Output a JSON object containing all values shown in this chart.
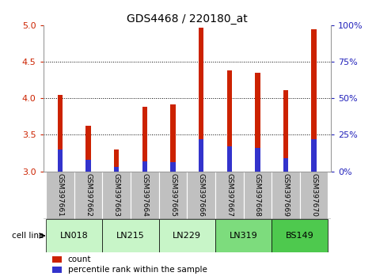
{
  "title": "GDS4468 / 220180_at",
  "samples": [
    "GSM397661",
    "GSM397662",
    "GSM397663",
    "GSM397664",
    "GSM397665",
    "GSM397666",
    "GSM397667",
    "GSM397668",
    "GSM397669",
    "GSM397670"
  ],
  "count_values": [
    4.05,
    3.62,
    3.3,
    3.88,
    3.92,
    4.97,
    4.38,
    4.35,
    4.11,
    4.94
  ],
  "percentile_values": [
    15,
    8,
    3,
    7,
    6,
    22,
    17,
    16,
    9,
    22
  ],
  "ylim": [
    3.0,
    5.0
  ],
  "yticks": [
    3.0,
    3.5,
    4.0,
    4.5,
    5.0
  ],
  "right_yticks": [
    0,
    25,
    50,
    75,
    100
  ],
  "right_ylim": [
    0,
    100
  ],
  "cell_line_data": [
    {
      "name": "LN018",
      "indices": [
        0,
        1
      ],
      "color": "#c8f5c8"
    },
    {
      "name": "LN215",
      "indices": [
        2,
        3
      ],
      "color": "#c8f5c8"
    },
    {
      "name": "LN229",
      "indices": [
        4,
        5
      ],
      "color": "#c8f5c8"
    },
    {
      "name": "LN319",
      "indices": [
        6,
        7
      ],
      "color": "#7ddc7d"
    },
    {
      "name": "BS149",
      "indices": [
        8,
        9
      ],
      "color": "#4ec94e"
    }
  ],
  "bar_color_red": "#cc2200",
  "bar_color_blue": "#3333cc",
  "tick_label_color_left": "#cc2200",
  "tick_label_color_right": "#2222bb",
  "background_xtick": "#c0c0c0",
  "bar_width": 0.18,
  "grid_color": "#000000"
}
